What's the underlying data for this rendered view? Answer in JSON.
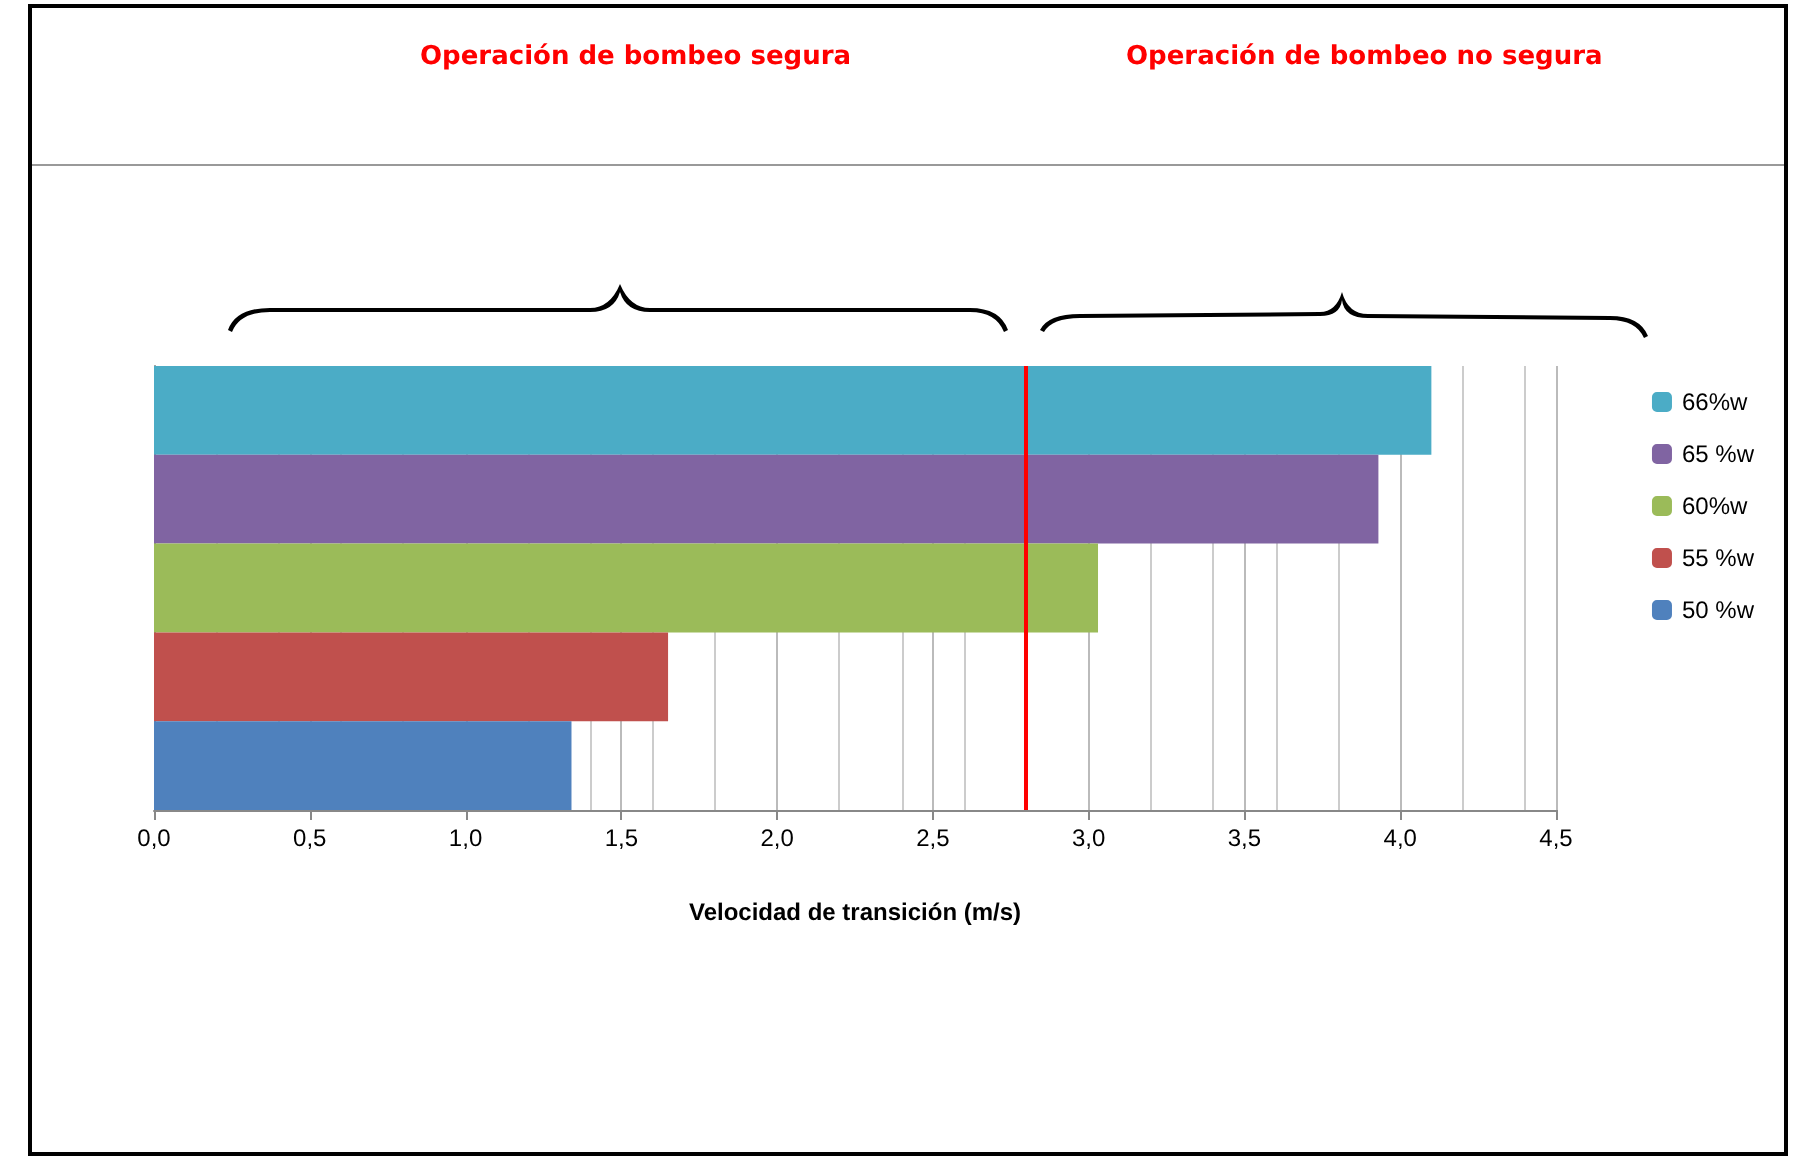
{
  "chart_data": {
    "type": "bar",
    "orientation": "horizontal",
    "stacked": true,
    "xlabel": "Velocidad de transición (m/s)",
    "annotations": [
      "Operación de bombeo segura",
      "Operación de bombeo no segura"
    ],
    "categories": [
      null,
      null,
      null,
      null,
      null
    ],
    "series": [
      {
        "name": "66%w",
        "color": "#4bacc6",
        "values": [
          4.1,
          null,
          null,
          null,
          null
        ]
      },
      {
        "name": "65 %w",
        "color": "#8064a2",
        "values": [
          null,
          3.93,
          null,
          null,
          null
        ]
      },
      {
        "name": "60%w",
        "color": "#9bbb59",
        "values": [
          null,
          null,
          3.03,
          null,
          null
        ]
      },
      {
        "name": "55 %w",
        "color": "#c0504d",
        "values": [
          null,
          null,
          null,
          1.65,
          null
        ]
      },
      {
        "name": "50 %w",
        "color": "#4f81bd",
        "values": [
          null,
          null,
          null,
          null,
          1.34
        ]
      }
    ],
    "xlim": [
      0,
      4.5
    ],
    "xticks": [
      {
        "value": 0,
        "label": "0,0"
      },
      {
        "value": 0.5,
        "label": "0,5"
      },
      {
        "value": 1,
        "label": "1,0"
      },
      {
        "value": 1.5,
        "label": "1,5"
      },
      {
        "value": 2,
        "label": "2,0"
      },
      {
        "value": 2.5,
        "label": "2,5"
      },
      {
        "value": 3,
        "label": "3,0"
      },
      {
        "value": 3.5,
        "label": "3,5"
      },
      {
        "value": 4,
        "label": "4,0"
      },
      {
        "value": 4.5,
        "label": "4,5"
      }
    ],
    "ref_lines": [
      {
        "axis": "x",
        "value": 2.8,
        "color": "#ff0000"
      }
    ],
    "grid": "x",
    "legend": "right"
  }
}
